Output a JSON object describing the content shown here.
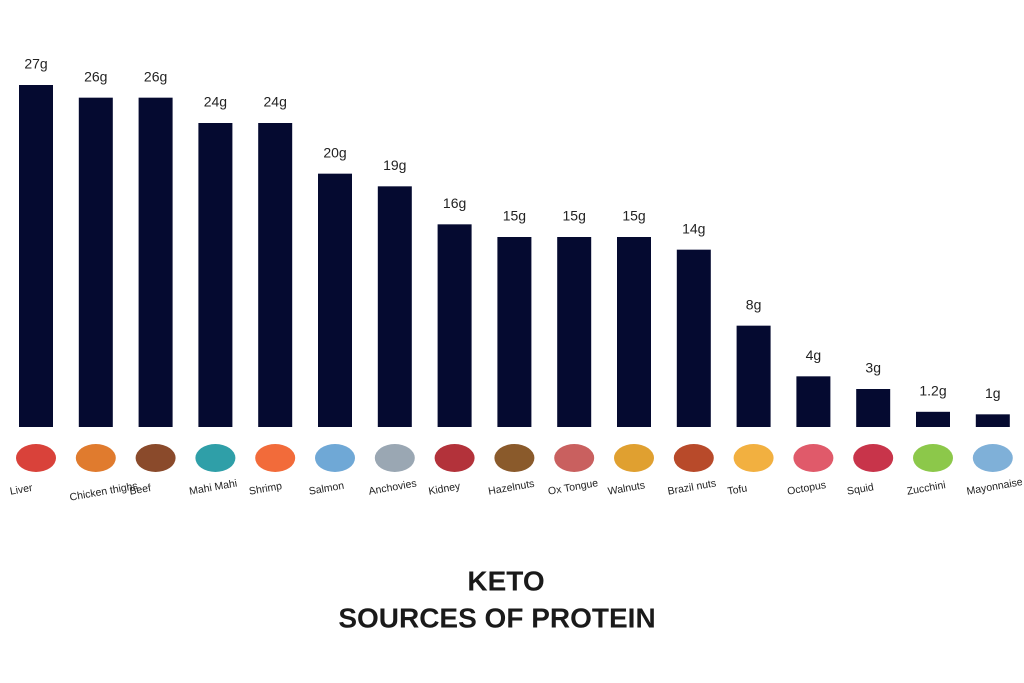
{
  "chart_data": {
    "type": "bar",
    "title": "KETO",
    "subtitle": "SOURCES OF PROTEIN",
    "categories": [
      "Liver",
      "Chicken thighs",
      "Beef",
      "Mahi Mahi",
      "Shrimp",
      "Salmon",
      "Anchovies",
      "Kidney",
      "Hazelnuts",
      "Ox Tongue",
      "Walnuts",
      "Brazil nuts",
      "Tofu",
      "Octopus",
      "Squid",
      "Zucchini",
      "Mayonnaise"
    ],
    "values": [
      27,
      26,
      26,
      24,
      24,
      20,
      19,
      16,
      15,
      15,
      15,
      14,
      8,
      4,
      3,
      1.2,
      1
    ],
    "value_labels": [
      "27g",
      "26g",
      "26g",
      "24g",
      "24g",
      "20g",
      "19g",
      "16g",
      "15g",
      "15g",
      "15g",
      "14g",
      "8g",
      "4g",
      "3g",
      "1.2g",
      "1g"
    ],
    "color": "#050a30"
  }
}
